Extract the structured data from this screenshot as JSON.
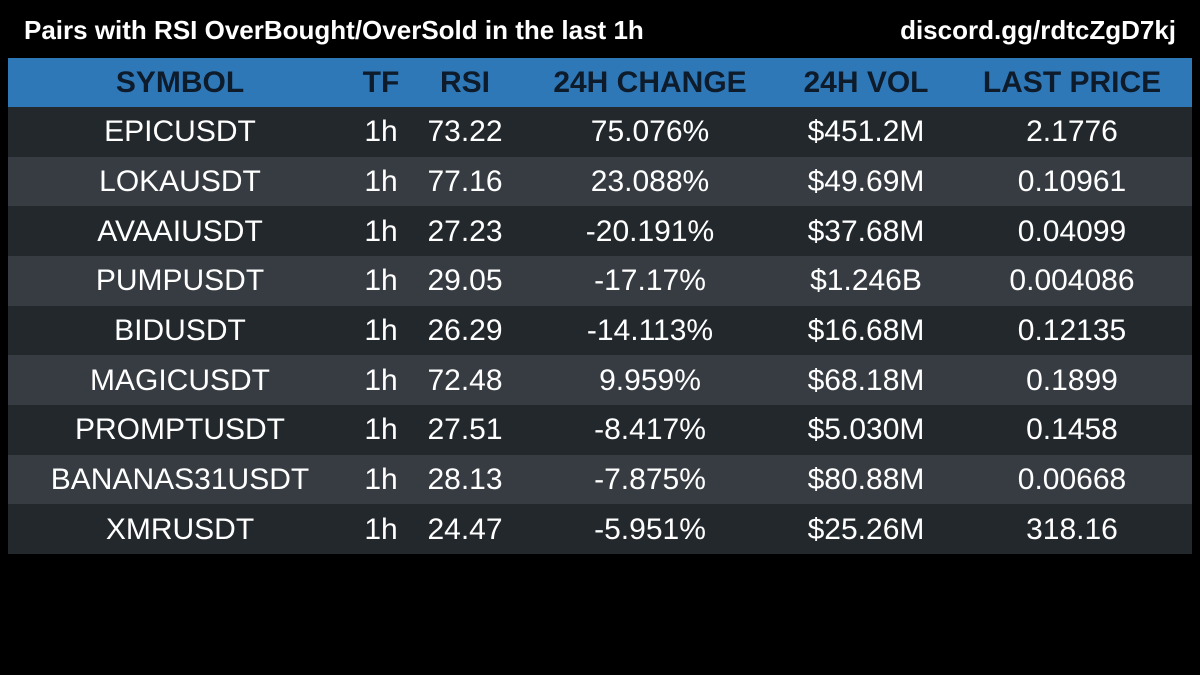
{
  "header": {
    "title": "Pairs with RSI OverBought/OverSold in the last 1h",
    "link": "discord.gg/rdtcZgD7kj"
  },
  "colors": {
    "background": "#000000",
    "header_row": "#2f78b8",
    "header_text": "#0d1b2a",
    "row_dark": "#23282d",
    "row_light": "#363c42",
    "text": "#ffffff"
  },
  "table": {
    "columns": [
      "SYMBOL",
      "TF",
      "RSI",
      "24H CHANGE",
      "24H VOL",
      "LAST PRICE"
    ],
    "rows": [
      {
        "symbol": "EPICUSDT",
        "tf": "1h",
        "rsi": "73.22",
        "change": "75.076%",
        "vol": "$451.2M",
        "price": "2.1776"
      },
      {
        "symbol": "LOKAUSDT",
        "tf": "1h",
        "rsi": "77.16",
        "change": "23.088%",
        "vol": "$49.69M",
        "price": "0.10961"
      },
      {
        "symbol": "AVAAIUSDT",
        "tf": "1h",
        "rsi": "27.23",
        "change": "-20.191%",
        "vol": "$37.68M",
        "price": "0.04099"
      },
      {
        "symbol": "PUMPUSDT",
        "tf": "1h",
        "rsi": "29.05",
        "change": "-17.17%",
        "vol": "$1.246B",
        "price": "0.004086"
      },
      {
        "symbol": "BIDUSDT",
        "tf": "1h",
        "rsi": "26.29",
        "change": "-14.113%",
        "vol": "$16.68M",
        "price": "0.12135"
      },
      {
        "symbol": "MAGICUSDT",
        "tf": "1h",
        "rsi": "72.48",
        "change": "9.959%",
        "vol": "$68.18M",
        "price": "0.1899"
      },
      {
        "symbol": "PROMPTUSDT",
        "tf": "1h",
        "rsi": "27.51",
        "change": "-8.417%",
        "vol": "$5.030M",
        "price": "0.1458"
      },
      {
        "symbol": "BANANAS31USDT",
        "tf": "1h",
        "rsi": "28.13",
        "change": "-7.875%",
        "vol": "$80.88M",
        "price": "0.00668"
      },
      {
        "symbol": "XMRUSDT",
        "tf": "1h",
        "rsi": "24.47",
        "change": "-5.951%",
        "vol": "$25.26M",
        "price": "318.16"
      }
    ]
  }
}
